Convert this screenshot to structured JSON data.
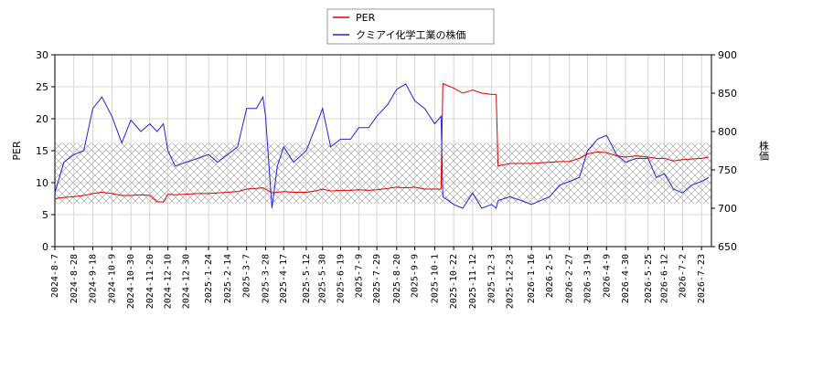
{
  "chart_data": {
    "type": "line",
    "y_label": "PER",
    "y2_label": "株価",
    "x": [
      "2024-8-7",
      "2024-8-17",
      "2024-8-28",
      "2024-9-8",
      "2024-9-18",
      "2024-9-28",
      "2024-10-9",
      "2024-10-20",
      "2024-10-30",
      "2024-11-10",
      "2024-11-20",
      "2024-11-28",
      "2024-12-5",
      "2024-12-10",
      "2024-12-18",
      "2024-12-30",
      "2025-1-12",
      "2025-1-24",
      "2025-2-3",
      "2025-2-14",
      "2025-2-25",
      "2025-3-7",
      "2025-3-18",
      "2025-3-25",
      "2025-3-28",
      "2025-4-4",
      "2025-4-10",
      "2025-4-17",
      "2025-4-28",
      "2025-5-12",
      "2025-5-22",
      "2025-5-30",
      "2025-6-8",
      "2025-6-19",
      "2025-6-30",
      "2025-7-9",
      "2025-7-20",
      "2025-7-29",
      "2025-8-10",
      "2025-8-20",
      "2025-8-30",
      "2025-9-9",
      "2025-9-20",
      "2025-10-1",
      "2025-10-8",
      "2025-10-10",
      "2025-10-22",
      "2025-11-1",
      "2025-11-12",
      "2025-11-22",
      "2025-12-3",
      "2025-12-8",
      "2025-12-10",
      "2025-12-23",
      "2026-1-5",
      "2026-1-16",
      "2026-1-26",
      "2026-2-5",
      "2026-2-16",
      "2026-2-27",
      "2026-3-10",
      "2026-3-19",
      "2026-3-30",
      "2026-4-9",
      "2026-4-20",
      "2026-4-30",
      "2026-5-12",
      "2026-5-25",
      "2026-6-3",
      "2026-6-12",
      "2026-6-22",
      "2026-7-2",
      "2026-7-12",
      "2026-7-23",
      "2026-7-31"
    ],
    "series": [
      {
        "name": "PER",
        "color": "#dd0000",
        "values": [
          7.5,
          7.7,
          7.8,
          8.0,
          8.3,
          8.5,
          8.3,
          8.0,
          8.0,
          8.1,
          8.0,
          7.0,
          7.0,
          8.2,
          8.1,
          8.2,
          8.3,
          8.3,
          8.4,
          8.5,
          8.6,
          9.0,
          9.1,
          9.2,
          9.0,
          8.4,
          8.5,
          8.6,
          8.5,
          8.5,
          8.7,
          9.0,
          8.7,
          8.8,
          8.8,
          8.9,
          8.8,
          8.9,
          9.1,
          9.3,
          9.2,
          9.3,
          9.0,
          9.0,
          9.0,
          25.5,
          24.8,
          24.0,
          24.5,
          24.0,
          23.8,
          23.8,
          12.6,
          13.0,
          13.0,
          13.0,
          13.1,
          13.2,
          13.3,
          13.3,
          13.8,
          14.5,
          14.8,
          14.7,
          14.2,
          14.0,
          14.2,
          14.0,
          13.8,
          13.8,
          13.4,
          13.6,
          13.7,
          13.8,
          14.0
        ]
      },
      {
        "name": "クミアイ化学工業の株価",
        "color": "#2222dd",
        "axis": "y2",
        "values": [
          720,
          760,
          770,
          775,
          830,
          845,
          820,
          785,
          815,
          800,
          810,
          800,
          810,
          775,
          755,
          760,
          765,
          770,
          760,
          770,
          780,
          830,
          830,
          845,
          820,
          700,
          755,
          780,
          760,
          775,
          805,
          830,
          780,
          790,
          790,
          805,
          805,
          820,
          835,
          855,
          862,
          840,
          830,
          810,
          820,
          715,
          705,
          700,
          720,
          700,
          705,
          700,
          710,
          715,
          710,
          705,
          710,
          715,
          730,
          735,
          740,
          775,
          790,
          795,
          770,
          760,
          765,
          765,
          740,
          745,
          725,
          720,
          730,
          735,
          740
        ]
      }
    ],
    "shaded_range": [
      6.7,
      16.2
    ],
    "xlim": [
      "2024-8-7",
      "2026-8-3"
    ],
    "xticks": [
      "2024-8-7",
      "2024-8-28",
      "2024-9-18",
      "2024-10-9",
      "2024-10-30",
      "2024-11-20",
      "2024-12-10",
      "2024-12-30",
      "2025-1-24",
      "2025-2-14",
      "2025-3-7",
      "2025-3-28",
      "2025-4-17",
      "2025-5-12",
      "2025-5-30",
      "2025-6-19",
      "2025-7-9",
      "2025-7-29",
      "2025-8-20",
      "2025-9-9",
      "2025-10-1",
      "2025-10-22",
      "2025-11-12",
      "2025-12-3",
      "2025-12-23",
      "2026-1-16",
      "2026-2-5",
      "2026-2-27",
      "2026-3-19",
      "2026-4-9",
      "2026-4-30",
      "2026-5-25",
      "2026-6-12",
      "2026-7-2",
      "2026-7-23"
    ],
    "ylim": [
      0,
      30
    ],
    "yticks": [
      0,
      5,
      10,
      15,
      20,
      25,
      30
    ],
    "y2lim": [
      650,
      900
    ],
    "y2ticks": [
      650,
      700,
      750,
      800,
      850,
      900
    ],
    "grid": true,
    "legend": "top"
  }
}
